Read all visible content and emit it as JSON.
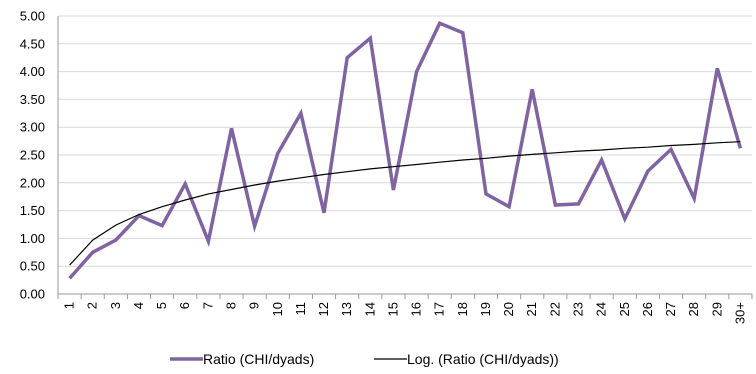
{
  "chart_data": {
    "type": "line",
    "title": "",
    "xlabel": "",
    "ylabel": "",
    "ylim": [
      0,
      5
    ],
    "y_ticks": [
      "0.00",
      "0.50",
      "1.00",
      "1.50",
      "2.00",
      "2.50",
      "3.00",
      "3.50",
      "4.00",
      "4.50",
      "5.00"
    ],
    "categories": [
      "1",
      "2",
      "3",
      "4",
      "5",
      "6",
      "7",
      "8",
      "9",
      "10",
      "11",
      "12",
      "13",
      "14",
      "15",
      "16",
      "17",
      "18",
      "19",
      "20",
      "21",
      "22",
      "23",
      "24",
      "25",
      "26",
      "27",
      "28",
      "29",
      "30+"
    ],
    "grid": true,
    "legend_position": "bottom",
    "series": [
      {
        "name": "Ratio (CHI/dyads)",
        "color": "#8064a2",
        "values": [
          0.28,
          0.75,
          0.97,
          1.41,
          1.23,
          1.98,
          0.95,
          2.98,
          1.22,
          2.53,
          3.25,
          1.46,
          4.25,
          4.6,
          1.87,
          4.0,
          4.87,
          4.7,
          1.8,
          1.57,
          3.68,
          1.6,
          1.62,
          2.41,
          1.35,
          2.21,
          2.6,
          1.72,
          4.06,
          2.62
        ]
      },
      {
        "name": "Log. (Ratio (CHI/dyads))",
        "color": "#000000",
        "trendline": "logarithmic",
        "values": [
          0.52,
          0.97,
          1.24,
          1.43,
          1.57,
          1.69,
          1.8,
          1.88,
          1.96,
          2.03,
          2.09,
          2.15,
          2.2,
          2.25,
          2.29,
          2.33,
          2.37,
          2.41,
          2.44,
          2.48,
          2.51,
          2.54,
          2.57,
          2.59,
          2.62,
          2.64,
          2.67,
          2.69,
          2.72,
          2.74
        ]
      }
    ]
  }
}
